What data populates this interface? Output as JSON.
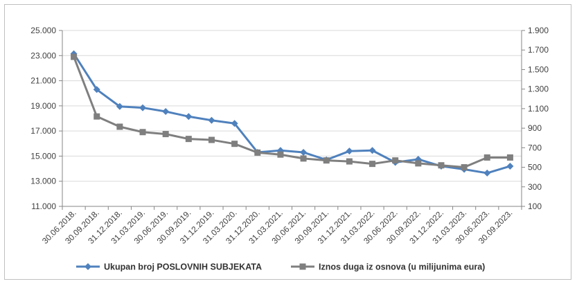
{
  "chart_data": {
    "type": "line",
    "categories": [
      "30.06.2018.",
      "30.09.2018.",
      "31.12.2018.",
      "31.03.2019.",
      "30.06.2019.",
      "30.09.2019.",
      "31.12.2019.",
      "31.03.2020.",
      "31.12.2020.",
      "31.03.2021.",
      "30.06.2021.",
      "30.09.2021.",
      "31.12.2021.",
      "31.03.2022.",
      "30.06.2022.",
      "30.09.2022.",
      "31.12.2022.",
      "31.03.2023.",
      "30.06.2023.",
      "30.09.2023."
    ],
    "series": [
      {
        "name": "Ukupan broj POSLOVNIH SUBJEKATA",
        "axis": "left",
        "color": "#4f81bd",
        "marker": "diamond",
        "values": [
          23150,
          20300,
          18950,
          18850,
          18550,
          18150,
          17850,
          17600,
          15300,
          15450,
          15300,
          14700,
          15400,
          15450,
          14500,
          14750,
          14200,
          13950,
          13650,
          14200
        ]
      },
      {
        "name": "Iznos duga iz osnova (u milijunima eura)",
        "axis": "right",
        "color": "#7f7f7f",
        "marker": "square",
        "values": [
          1630,
          1020,
          915,
          860,
          840,
          790,
          780,
          740,
          650,
          630,
          590,
          570,
          560,
          535,
          570,
          540,
          520,
          500,
          600,
          600
        ]
      }
    ],
    "y_left": {
      "min": 11000,
      "max": 25000,
      "ticks": [
        "11.000",
        "13.000",
        "15.000",
        "17.000",
        "19.000",
        "21.000",
        "23.000",
        "25.000"
      ]
    },
    "y_right": {
      "min": 100,
      "max": 1900,
      "ticks": [
        "100",
        "300",
        "500",
        "700",
        "900",
        "1.100",
        "1.300",
        "1.500",
        "1.700",
        "1.900"
      ]
    },
    "grid": "horizontal-left",
    "legend": "bottom"
  }
}
